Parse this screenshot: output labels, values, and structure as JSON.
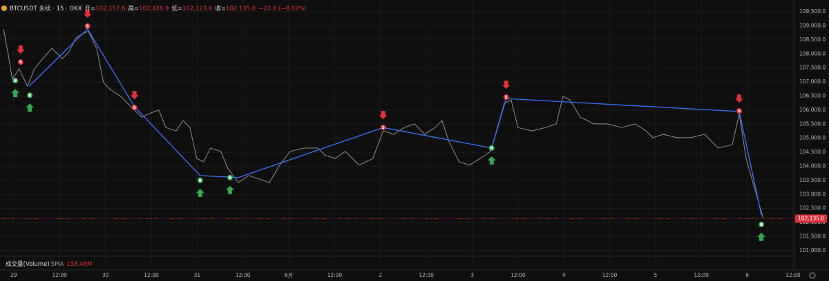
{
  "chart_data": {
    "type": "line",
    "symbol": "BTCUSDT 永续 · 15 · OKX",
    "ohlc": [
      {
        "label": "开=",
        "value": "102,157.6"
      },
      {
        "label": "高=",
        "value": "102,426.9"
      },
      {
        "label": "低=",
        "value": "102,123.6"
      },
      {
        "label": "收=",
        "value": "102,135.0"
      }
    ],
    "change": "−22.6 (−0.02%)",
    "volume_label": "成交量(Volume)",
    "volume_sma_label": "SMA",
    "volume_sma": "158.48M",
    "last_price": 102135,
    "last_price_label": "102,135.0",
    "xlim": [
      -3.6,
      204
    ],
    "ylim": [
      100800,
      109920
    ],
    "xticks": [
      {
        "value": 0,
        "label": "29"
      },
      {
        "value": 12,
        "label": "12:00"
      },
      {
        "value": 24,
        "label": "30"
      },
      {
        "value": 36,
        "label": "12:00"
      },
      {
        "value": 48,
        "label": "31"
      },
      {
        "value": 60,
        "label": "12:00"
      },
      {
        "value": 72,
        "label": "6月"
      },
      {
        "value": 84,
        "label": "12:00"
      },
      {
        "value": 96,
        "label": "2"
      },
      {
        "value": 108,
        "label": "12:00"
      },
      {
        "value": 120,
        "label": "3"
      },
      {
        "value": 132,
        "label": "12:00"
      },
      {
        "value": 144,
        "label": "4"
      },
      {
        "value": 156,
        "label": "12:00"
      },
      {
        "value": 168,
        "label": "5"
      },
      {
        "value": 180,
        "label": "12:00"
      },
      {
        "value": 192,
        "label": "6"
      },
      {
        "value": 204,
        "label": "12:00"
      }
    ],
    "yticks": [
      {
        "value": 101000,
        "label": "101,000.0"
      },
      {
        "value": 101500,
        "label": "101,500.0"
      },
      {
        "value": 102000,
        "label": "102,000.0"
      },
      {
        "value": 102500,
        "label": "102,500.0"
      },
      {
        "value": 103000,
        "label": "103,000.0"
      },
      {
        "value": 103500,
        "label": "103,500.0"
      },
      {
        "value": 104000,
        "label": "104,000.0"
      },
      {
        "value": 104500,
        "label": "104,500.0"
      },
      {
        "value": 105000,
        "label": "105,000.0"
      },
      {
        "value": 105500,
        "label": "105,500.0"
      },
      {
        "value": 106000,
        "label": "106,000.0"
      },
      {
        "value": 106500,
        "label": "106,500.0"
      },
      {
        "value": 107000,
        "label": "107,000.0"
      },
      {
        "value": 107500,
        "label": "107,500.0"
      },
      {
        "value": 108000,
        "label": "108,000.0"
      },
      {
        "value": 108500,
        "label": "108,500.0"
      },
      {
        "value": 109000,
        "label": "109,000.0"
      },
      {
        "value": 109500,
        "label": "109,500.0"
      }
    ],
    "grid": true,
    "series": [
      {
        "color": "#8f8f8f",
        "x": [
          -2.7,
          -1.4,
          -0.4,
          1.4,
          3.6,
          5.4,
          7.6,
          10,
          12.7,
          14.5,
          16.3,
          17.7,
          19.5,
          21.7,
          23.5,
          25.3,
          28,
          30.7,
          33.5,
          35.3,
          38,
          39.8,
          42.5,
          44.3,
          46.1,
          47.9,
          49.7,
          51.5,
          54.2,
          56.1,
          58.8,
          61.5,
          64.2,
          66.9,
          69.6,
          72.3,
          75.9,
          79.6,
          81.4,
          84.1,
          86.8,
          90.4,
          94,
          96.7,
          99.5,
          102.2,
          104.9,
          107.6,
          110.3,
          112.1,
          113.9,
          116.6,
          119.3,
          122.1,
          124.8,
          126.6,
          128.4,
          130.2,
          132,
          135.6,
          139.2,
          142,
          143.8,
          145.6,
          148.3,
          151.9,
          155.5,
          159.1,
          162.7,
          165.5,
          167.3,
          170,
          173.6,
          177.2,
          180.8,
          184.4,
          188.1,
          189.9,
          191.7,
          193.5,
          195.3,
          196.2
        ],
        "values": [
          108890,
          107960,
          107100,
          107470,
          106850,
          107470,
          107830,
          108200,
          107830,
          108080,
          108570,
          108690,
          108810,
          108200,
          106980,
          106730,
          106490,
          106120,
          105750,
          105870,
          106000,
          105380,
          105260,
          105630,
          105380,
          104280,
          104160,
          104650,
          104530,
          103910,
          103420,
          103670,
          103550,
          103420,
          104040,
          104530,
          104650,
          104650,
          104400,
          104280,
          104530,
          104040,
          104280,
          105260,
          105140,
          105380,
          105510,
          105140,
          105380,
          105630,
          104890,
          104160,
          104040,
          104280,
          104530,
          105380,
          106240,
          106360,
          105380,
          105260,
          105380,
          105510,
          106490,
          106360,
          105750,
          105510,
          105510,
          105380,
          105510,
          105260,
          105020,
          105140,
          105020,
          105020,
          105140,
          104650,
          104770,
          105870,
          104280,
          103420,
          102570,
          102135
        ]
      },
      {
        "color": "#3b6cf0",
        "x": [
          4,
          19.3,
          31.6,
          48.8,
          58.8,
          96.7,
          125.1,
          128.9,
          189.9,
          195.7
        ],
        "values": [
          106850,
          108890,
          106120,
          103670,
          103600,
          105380,
          104650,
          106410,
          105950,
          102270
        ]
      }
    ],
    "sell_signals": {
      "color": "#e0323c",
      "x": [
        1.8,
        19.3,
        31.6,
        96.7,
        128.9,
        189.9
      ],
      "values": [
        107710,
        108990,
        106090,
        105380,
        106460,
        105970
      ],
      "labels": [
        "S",
        "S",
        "S",
        "S",
        "S",
        "S"
      ]
    },
    "buy_signals": {
      "color": "#36a852",
      "x": [
        0.4,
        4.2,
        48.8,
        56.6,
        125.1,
        195.7
      ],
      "values": [
        107050,
        106530,
        103500,
        103600,
        104650,
        101930
      ],
      "labels": [
        "B",
        "B",
        "B",
        "B",
        "B",
        "B"
      ]
    }
  }
}
